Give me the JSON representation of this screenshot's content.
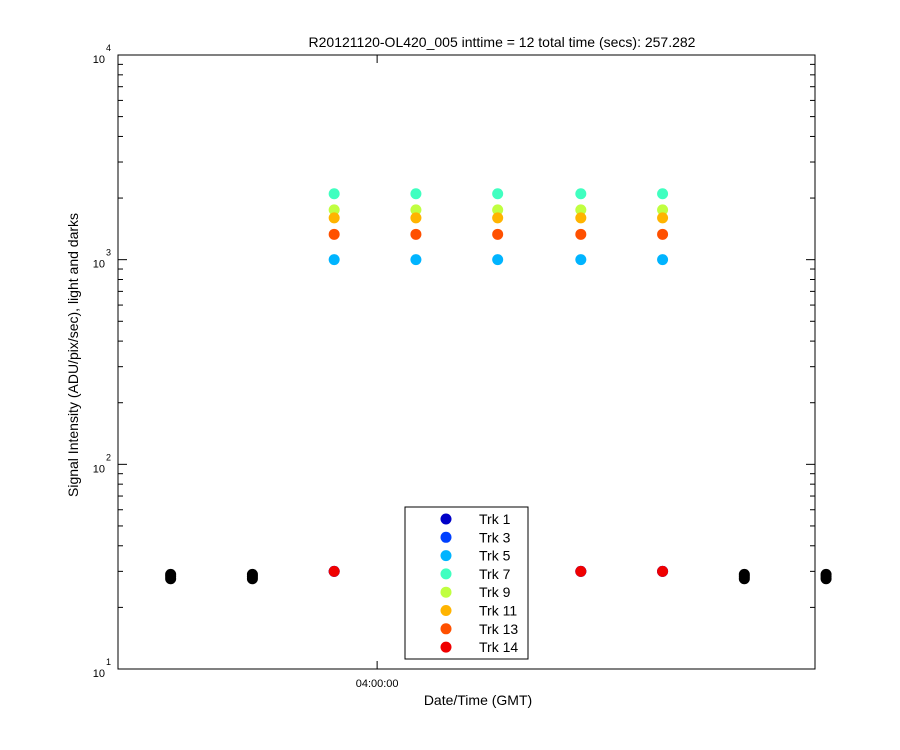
{
  "chart_data": {
    "type": "scatter",
    "title": "R20121120-OL420_005 inttime = 12 total time (secs): 257.282",
    "xlabel": "Date/Time (GMT)",
    "ylabel": "Signal Intensity (ADU/pix/sec), light and darks",
    "y_scale": "log",
    "ylim": [
      10,
      10000
    ],
    "x_ticks": [
      {
        "time": "04:00:00",
        "label": "04:00:00"
      }
    ],
    "y_ticks": [
      {
        "value": 10,
        "base": "10",
        "exp": "1"
      },
      {
        "value": 100,
        "base": "10",
        "exp": "2"
      },
      {
        "value": 1000,
        "base": "10",
        "exp": "3"
      },
      {
        "value": 10000,
        "base": "10",
        "exp": "4"
      }
    ],
    "xlim_time": [
      "03:56:53",
      "04:05:16"
    ],
    "x": [
      "03:57:31",
      "03:58:30",
      "03:59:29",
      "04:00:28",
      "04:01:27",
      "04:02:27",
      "04:03:26",
      "04:04:25",
      "04:05:24"
    ],
    "dark_series": {
      "color": "#000000",
      "x": [
        "03:57:31",
        "03:58:30",
        "04:04:25",
        "04:05:24"
      ],
      "values": [
        28.3,
        28.3,
        28.3,
        28.3
      ],
      "values_low": [
        27.6,
        27.6,
        27.6,
        27.6
      ],
      "values_high": [
        29.0,
        29.0,
        29.0,
        29.0
      ]
    },
    "light_x": [
      "03:59:29",
      "04:00:28",
      "04:01:27",
      "04:02:27",
      "04:03:26"
    ],
    "series": [
      {
        "name": "Trk 1",
        "color": "#0000c8",
        "values": [
          30,
          30,
          30,
          30,
          30
        ]
      },
      {
        "name": "Trk 3",
        "color": "#0040ff",
        "values": [
          30,
          30,
          30,
          30,
          30
        ]
      },
      {
        "name": "Trk 5",
        "color": "#00b4ff",
        "values": [
          1000,
          1000,
          1000,
          1000,
          1000
        ]
      },
      {
        "name": "Trk 7",
        "color": "#40ffc0",
        "values": [
          2100,
          2100,
          2100,
          2100,
          2100
        ]
      },
      {
        "name": "Trk 9",
        "color": "#c0ff40",
        "values": [
          1750,
          1750,
          1750,
          1750,
          1750
        ]
      },
      {
        "name": "Trk 11",
        "color": "#ffb400",
        "values": [
          1600,
          1600,
          1600,
          1600,
          1600
        ]
      },
      {
        "name": "Trk 13",
        "color": "#ff5000",
        "values": [
          1330,
          1330,
          1330,
          1330,
          1330
        ]
      },
      {
        "name": "Trk 14",
        "color": "#f00000",
        "values": [
          30,
          30,
          30,
          30,
          30
        ]
      }
    ],
    "legend": "bottom-center",
    "grid": false
  }
}
